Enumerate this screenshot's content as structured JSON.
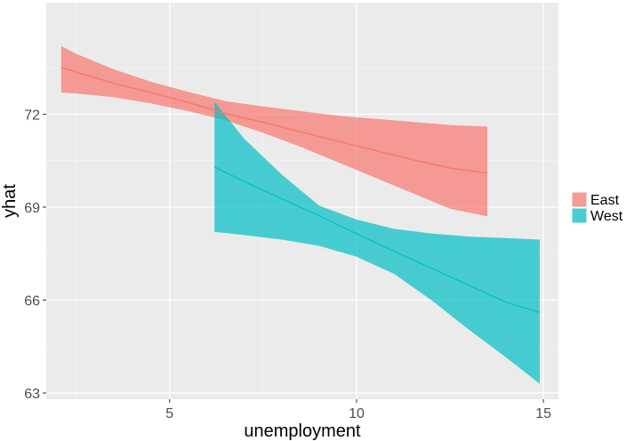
{
  "chart_data": {
    "type": "area",
    "xlabel": "unemployment",
    "ylabel": "yhat",
    "xlim": [
      1.7,
      15.4
    ],
    "ylim": [
      62.8,
      75.6
    ],
    "x_ticks": [
      5,
      10,
      15
    ],
    "x_tick_labels": [
      "5",
      "10",
      "15"
    ],
    "y_ticks": [
      63,
      66,
      69,
      72
    ],
    "y_tick_labels": [
      "63",
      "66",
      "69",
      "72"
    ],
    "grid": true,
    "legend_position": "right",
    "series": [
      {
        "name": "East",
        "color": "#F8766D",
        "x": [
          2.1,
          2.5,
          3.5,
          4.5,
          5.5,
          6.5,
          7.5,
          8.5,
          9.5,
          10.5,
          11.5,
          12.5,
          13.5
        ],
        "y": [
          73.5,
          73.36,
          73.0,
          72.7,
          72.38,
          72.02,
          71.74,
          71.43,
          71.13,
          70.83,
          70.53,
          70.26,
          70.1
        ],
        "lower": [
          72.7,
          72.67,
          72.55,
          72.35,
          72.1,
          71.8,
          71.4,
          70.95,
          70.45,
          69.95,
          69.45,
          68.95,
          68.7
        ],
        "upper": [
          74.2,
          73.95,
          73.45,
          73.05,
          72.72,
          72.42,
          72.25,
          72.1,
          71.95,
          71.85,
          71.75,
          71.65,
          71.6
        ]
      },
      {
        "name": "West",
        "color": "#00BFC4",
        "x": [
          6.2,
          7.0,
          8.0,
          9.0,
          10.0,
          11.0,
          12.0,
          13.0,
          14.0,
          14.9
        ],
        "y": [
          70.3,
          69.82,
          69.27,
          68.72,
          68.14,
          67.58,
          67.03,
          66.48,
          65.93,
          65.6
        ],
        "lower": [
          68.2,
          68.1,
          67.95,
          67.75,
          67.4,
          66.85,
          66.0,
          65.05,
          64.15,
          63.3
        ],
        "upper": [
          72.4,
          71.2,
          70.05,
          69.05,
          68.6,
          68.3,
          68.15,
          68.05,
          68.0,
          67.95
        ]
      }
    ]
  }
}
